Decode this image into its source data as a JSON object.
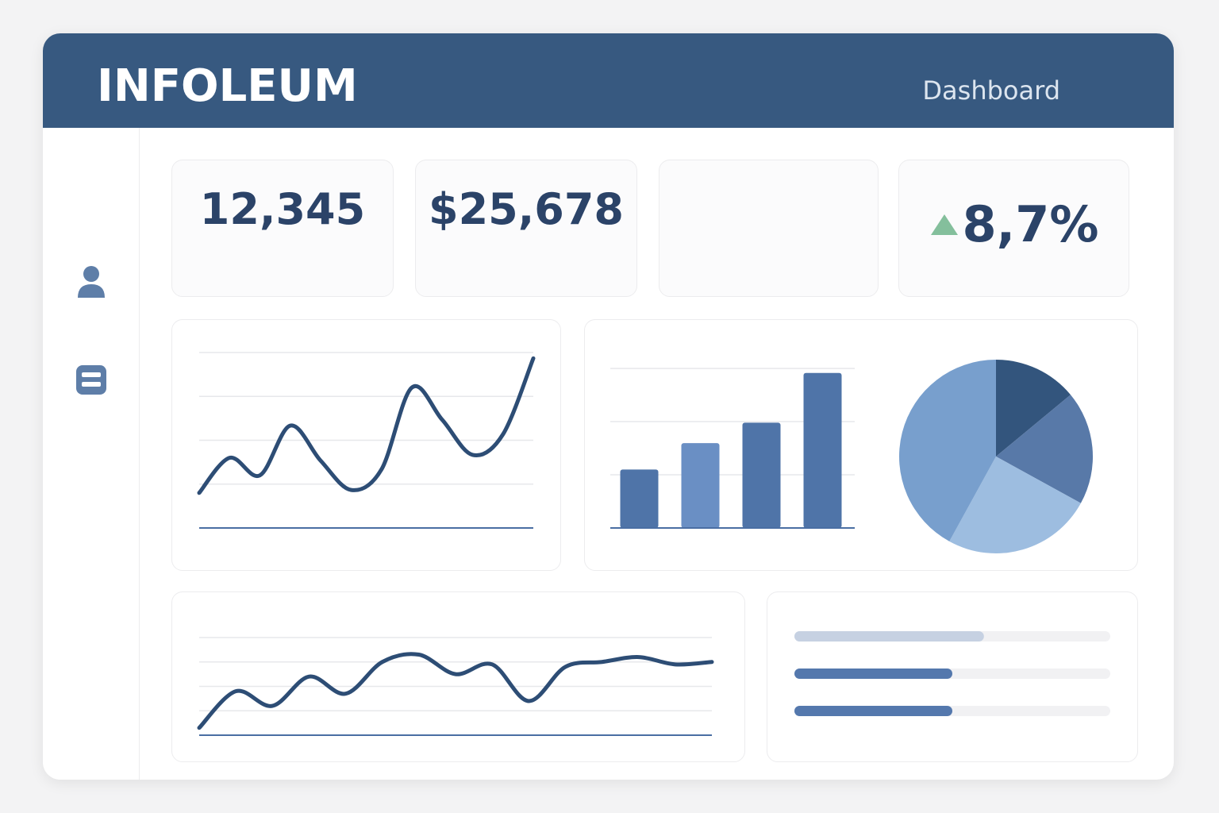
{
  "header": {
    "brand": "INFOLEUM",
    "nav_title": "Dashboard"
  },
  "sidebar": {
    "items": [
      {
        "icon": "user-icon"
      },
      {
        "icon": "list-icon"
      }
    ]
  },
  "kpis": [
    {
      "value": "12,345"
    },
    {
      "value": "$25,678"
    },
    {
      "value": ""
    },
    {
      "value": "8,7%",
      "trend": "up",
      "trend_icon": "triangle-up-icon"
    }
  ],
  "colors": {
    "header": "#375980",
    "primary_line": "#2d4d75",
    "bar": "#4f74a8",
    "bar_light": "#6a8fc4",
    "pie_dark": "#33557d",
    "pie_mid": "#5879a8",
    "pie_light": "#9dbde0",
    "pie_base": "#789fcd",
    "trend_up": "#84bf9c",
    "progress_fill": "#5478ad",
    "progress_fill_light": "#c6d1e2",
    "progress_track": "#f1f1f3"
  },
  "chart_data": [
    {
      "type": "line",
      "x": [
        0,
        1,
        2,
        3,
        4,
        5,
        6,
        7,
        8,
        9,
        10,
        11
      ],
      "series": [
        {
          "values": [
            1.2,
            2.4,
            1.8,
            3.5,
            2.3,
            1.3,
            2.0,
            4.8,
            3.7,
            2.5,
            3.2,
            5.8
          ]
        }
      ],
      "ylim": [
        0,
        6
      ],
      "grid": true
    },
    {
      "type": "bar",
      "categories": [
        "",
        "",
        "",
        ""
      ],
      "values": [
        2.0,
        2.9,
        3.6,
        5.3
      ],
      "ylim": [
        0,
        6
      ],
      "grid": true
    },
    {
      "type": "pie",
      "values": [
        14,
        19,
        25,
        42
      ]
    },
    {
      "type": "line",
      "x": [
        0,
        1,
        2,
        3,
        4,
        5,
        6,
        7,
        8,
        9,
        10,
        11,
        12,
        13,
        14
      ],
      "series": [
        {
          "values": [
            0.3,
            1.8,
            1.2,
            2.4,
            1.7,
            3.0,
            3.3,
            2.5,
            2.9,
            1.4,
            2.8,
            3.0,
            3.2,
            2.9,
            3.0
          ]
        }
      ],
      "ylim": [
        0,
        4
      ],
      "grid": true
    },
    {
      "type": "bar",
      "orientation": "horizontal",
      "values": [
        0.6,
        0.5,
        0.5
      ],
      "xlim": [
        0,
        1
      ]
    }
  ]
}
